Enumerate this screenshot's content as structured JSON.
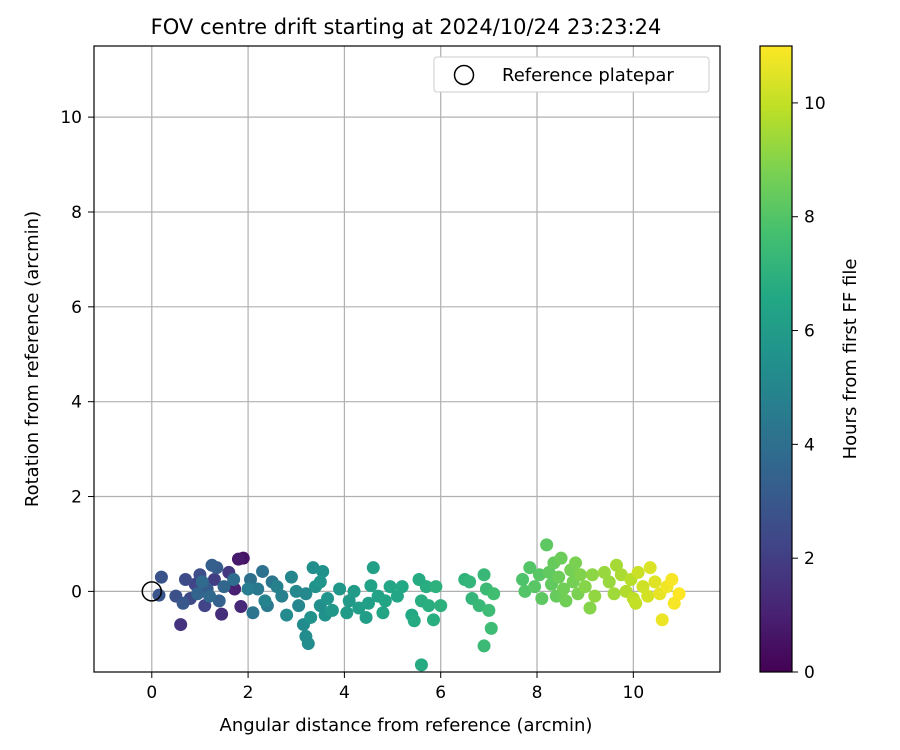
{
  "chart_data": {
    "type": "scatter",
    "title": "FOV centre drift starting at 2024/10/24 23:23:24",
    "xlabel": "Angular distance from reference (arcmin)",
    "ylabel": "Rotation from reference (arcmin)",
    "xlim": [
      -1.2,
      11.8
    ],
    "ylim": [
      -1.7,
      11.5
    ],
    "xticks": [
      "0",
      "2",
      "4",
      "6",
      "8",
      "10"
    ],
    "yticks": [
      "0",
      "2",
      "4",
      "6",
      "8",
      "10"
    ],
    "grid": true,
    "legend": {
      "placement": "top-right",
      "entries": [
        "Reference platepar"
      ]
    },
    "reference_point": {
      "x": 0,
      "y": 0
    },
    "colorbar": {
      "label": "Hours from first FF file",
      "range": [
        0,
        11
      ],
      "ticks": [
        "0",
        "2",
        "4",
        "6",
        "8",
        "10"
      ],
      "colormap": "viridis"
    },
    "series": [
      {
        "marker_color_by": "hours",
        "points": [
          [
            1.9,
            0.7,
            0.6
          ],
          [
            1.8,
            0.68,
            0.8
          ],
          [
            1.72,
            0.05,
            1.0
          ],
          [
            1.85,
            -0.32,
            1.2
          ],
          [
            1.45,
            -0.48,
            1.4
          ],
          [
            0.6,
            -0.7,
            1.6
          ],
          [
            1.6,
            0.4,
            1.8
          ],
          [
            1.3,
            0.25,
            2.0
          ],
          [
            1.1,
            -0.3,
            2.2
          ],
          [
            0.9,
            0.15,
            2.3
          ],
          [
            0.8,
            -0.15,
            2.4
          ],
          [
            0.7,
            0.25,
            2.5
          ],
          [
            1.0,
            0.35,
            2.6
          ],
          [
            0.5,
            -0.1,
            2.7
          ],
          [
            0.2,
            0.3,
            2.8
          ],
          [
            0.15,
            -0.08,
            2.9
          ],
          [
            0.65,
            -0.25,
            3.0
          ],
          [
            1.15,
            0.05,
            3.1
          ],
          [
            1.35,
            0.5,
            3.2
          ],
          [
            1.25,
            0.55,
            3.3
          ],
          [
            1.4,
            -0.2,
            3.4
          ],
          [
            0.95,
            -0.05,
            3.5
          ],
          [
            1.5,
            0.1,
            3.6
          ],
          [
            1.2,
            -0.1,
            3.7
          ],
          [
            1.05,
            0.2,
            3.8
          ],
          [
            1.7,
            0.25,
            3.9
          ],
          [
            2.05,
            0.25,
            4.0
          ],
          [
            2.3,
            0.42,
            4.1
          ],
          [
            2.1,
            -0.45,
            4.2
          ],
          [
            2.5,
            0.2,
            4.3
          ],
          [
            2.2,
            0.05,
            4.4
          ],
          [
            2.4,
            -0.3,
            4.5
          ],
          [
            2.0,
            0.05,
            4.6
          ],
          [
            2.7,
            -0.1,
            4.7
          ],
          [
            2.6,
            0.1,
            4.8
          ],
          [
            2.35,
            -0.2,
            4.9
          ],
          [
            2.9,
            0.3,
            5.0
          ],
          [
            3.05,
            -0.3,
            5.0
          ],
          [
            3.2,
            -0.05,
            5.1
          ],
          [
            3.0,
            0.0,
            5.1
          ],
          [
            2.8,
            -0.5,
            5.2
          ],
          [
            3.15,
            -0.7,
            5.2
          ],
          [
            3.2,
            -0.95,
            5.3
          ],
          [
            3.25,
            -1.1,
            5.3
          ],
          [
            3.5,
            -0.3,
            5.4
          ],
          [
            3.35,
            0.5,
            5.4
          ],
          [
            3.55,
            0.42,
            5.5
          ],
          [
            3.6,
            -0.5,
            5.5
          ],
          [
            3.4,
            0.1,
            5.6
          ],
          [
            3.3,
            -0.55,
            5.6
          ],
          [
            3.5,
            0.2,
            5.7
          ],
          [
            3.65,
            -0.15,
            5.7
          ],
          [
            3.75,
            -0.4,
            5.8
          ],
          [
            3.9,
            0.05,
            5.8
          ],
          [
            4.1,
            -0.2,
            5.9
          ],
          [
            4.05,
            -0.45,
            6.0
          ],
          [
            4.2,
            0.0,
            6.0
          ],
          [
            4.3,
            -0.35,
            6.1
          ],
          [
            4.45,
            -0.55,
            6.1
          ],
          [
            4.5,
            -0.25,
            6.2
          ],
          [
            4.6,
            0.5,
            6.2
          ],
          [
            4.55,
            0.12,
            6.3
          ],
          [
            4.7,
            -0.1,
            6.3
          ],
          [
            4.8,
            -0.45,
            6.4
          ],
          [
            4.85,
            -0.2,
            6.4
          ],
          [
            4.95,
            0.1,
            6.5
          ],
          [
            5.1,
            -0.1,
            6.5
          ],
          [
            5.2,
            0.1,
            6.6
          ],
          [
            5.4,
            -0.5,
            6.6
          ],
          [
            5.45,
            -0.62,
            6.7
          ],
          [
            5.55,
            0.25,
            6.7
          ],
          [
            5.6,
            -1.55,
            6.7
          ],
          [
            5.6,
            -0.2,
            6.8
          ],
          [
            5.7,
            0.1,
            6.8
          ],
          [
            5.75,
            -0.3,
            6.9
          ],
          [
            5.85,
            -0.6,
            6.9
          ],
          [
            5.9,
            0.1,
            7.0
          ],
          [
            6.0,
            -0.3,
            7.0
          ],
          [
            6.5,
            0.25,
            7.1
          ],
          [
            6.6,
            0.2,
            7.2
          ],
          [
            6.65,
            -0.15,
            7.2
          ],
          [
            6.8,
            -0.3,
            7.3
          ],
          [
            6.9,
            0.35,
            7.3
          ],
          [
            6.95,
            0.05,
            7.4
          ],
          [
            6.9,
            -1.15,
            7.4
          ],
          [
            7.0,
            -0.4,
            7.5
          ],
          [
            7.05,
            -0.78,
            7.5
          ],
          [
            7.1,
            -0.05,
            7.6
          ],
          [
            7.7,
            0.25,
            7.9
          ],
          [
            7.75,
            0.0,
            8.0
          ],
          [
            7.85,
            0.5,
            8.0
          ],
          [
            7.95,
            0.1,
            8.1
          ],
          [
            8.05,
            0.35,
            8.1
          ],
          [
            8.1,
            -0.15,
            8.2
          ],
          [
            8.2,
            0.98,
            8.2
          ],
          [
            8.25,
            0.4,
            8.3
          ],
          [
            8.3,
            0.15,
            8.3
          ],
          [
            8.35,
            0.6,
            8.4
          ],
          [
            8.4,
            -0.1,
            8.4
          ],
          [
            8.45,
            0.3,
            8.5
          ],
          [
            8.5,
            0.7,
            8.5
          ],
          [
            8.55,
            0.05,
            8.6
          ],
          [
            8.6,
            -0.2,
            8.6
          ],
          [
            8.7,
            0.45,
            8.7
          ],
          [
            8.75,
            0.2,
            8.7
          ],
          [
            8.8,
            0.6,
            8.8
          ],
          [
            8.85,
            -0.05,
            8.8
          ],
          [
            8.9,
            0.35,
            8.9
          ],
          [
            9.0,
            0.1,
            9.0
          ],
          [
            9.1,
            -0.35,
            9.0
          ],
          [
            9.15,
            0.35,
            9.1
          ],
          [
            9.2,
            -0.1,
            9.2
          ],
          [
            9.4,
            0.4,
            9.3
          ],
          [
            9.5,
            0.2,
            9.3
          ],
          [
            9.6,
            -0.05,
            9.4
          ],
          [
            9.65,
            0.55,
            9.5
          ],
          [
            9.75,
            0.35,
            9.6
          ],
          [
            9.85,
            0.0,
            9.7
          ],
          [
            9.95,
            0.25,
            9.8
          ],
          [
            10.0,
            -0.15,
            9.9
          ],
          [
            10.05,
            -0.25,
            10.0
          ],
          [
            10.1,
            0.4,
            10.1
          ],
          [
            10.2,
            0.1,
            10.2
          ],
          [
            10.3,
            -0.1,
            10.3
          ],
          [
            10.35,
            0.5,
            10.4
          ],
          [
            10.45,
            0.2,
            10.5
          ],
          [
            10.55,
            -0.05,
            10.6
          ],
          [
            10.6,
            -0.6,
            10.7
          ],
          [
            10.7,
            0.1,
            10.8
          ],
          [
            10.8,
            0.25,
            10.9
          ],
          [
            10.85,
            -0.25,
            10.9
          ],
          [
            10.95,
            -0.05,
            11.0
          ]
        ]
      }
    ]
  }
}
